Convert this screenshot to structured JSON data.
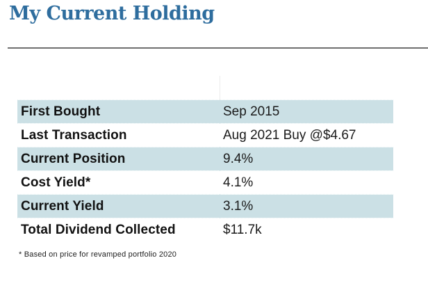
{
  "page": {
    "title": "My Current Holding",
    "footnote": "* Based on price for revamped portfolio 2020"
  },
  "table": {
    "rows": [
      {
        "label": "First Bought",
        "value": "Sep 2015"
      },
      {
        "label": "Last Transaction",
        "value": "Aug 2021 Buy @$4.67"
      },
      {
        "label": "Current Position",
        "value": "9.4%"
      },
      {
        "label": "Cost Yield*",
        "value": "4.1%"
      },
      {
        "label": "Current Yield",
        "value": "3.1%"
      },
      {
        "label": "Total Dividend Collected",
        "value": "$11.7k"
      }
    ]
  },
  "colors": {
    "title_blue": "#2e6d9e",
    "row_highlight_blue": "#cbe0e5",
    "rule_gray": "#6f6f6f"
  }
}
